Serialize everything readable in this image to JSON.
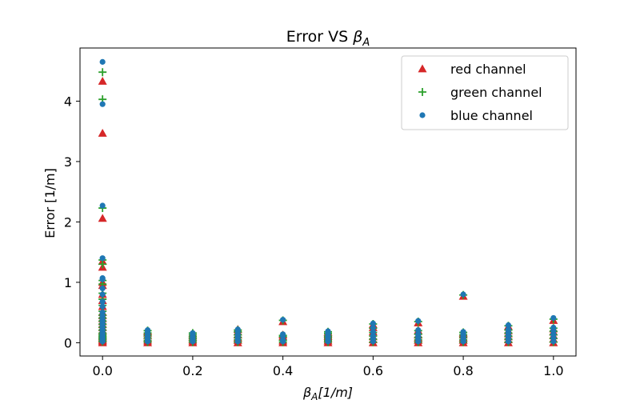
{
  "chart_data": {
    "type": "scatter",
    "title": "Error VS ",
    "title_symbol": "β",
    "title_symbol_sub": "A",
    "xlabel_symbol": "β",
    "xlabel_symbol_sub": "A",
    "xlabel_rest": "[1/m]",
    "ylabel": "Error [1/m]",
    "xlim": [
      -0.05,
      1.05
    ],
    "ylim": [
      -0.22,
      4.88
    ],
    "xticks": [
      0.0,
      0.2,
      0.4,
      0.6,
      0.8,
      1.0
    ],
    "xtick_labels": [
      "0.0",
      "0.2",
      "0.4",
      "0.6",
      "0.8",
      "1.0"
    ],
    "yticks": [
      0,
      1,
      2,
      3,
      4
    ],
    "ytick_labels": [
      "0",
      "1",
      "2",
      "3",
      "4"
    ],
    "grid": false,
    "legend_position": "top-right",
    "series": [
      {
        "name": "red channel",
        "marker": "triangle",
        "color": "#d62728",
        "x": [
          0.0,
          0.0,
          0.0,
          0.0,
          0.0,
          0.0,
          0.0,
          0.0,
          0.0,
          0.0,
          0.0,
          0.0,
          0.0,
          0.0,
          0.0,
          0.0,
          0.0,
          0.0,
          0.0,
          0.0,
          0.0,
          0.0,
          0.0,
          0.0,
          0.0,
          0.1,
          0.1,
          0.1,
          0.1,
          0.1,
          0.1,
          0.2,
          0.2,
          0.2,
          0.2,
          0.2,
          0.2,
          0.3,
          0.3,
          0.3,
          0.3,
          0.3,
          0.3,
          0.4,
          0.4,
          0.4,
          0.4,
          0.4,
          0.5,
          0.5,
          0.5,
          0.5,
          0.5,
          0.5,
          0.6,
          0.6,
          0.6,
          0.6,
          0.6,
          0.6,
          0.7,
          0.7,
          0.7,
          0.7,
          0.7,
          0.7,
          0.8,
          0.8,
          0.8,
          0.8,
          0.8,
          0.8,
          0.9,
          0.9,
          0.9,
          0.9,
          0.9,
          0.9,
          1.0,
          1.0,
          1.0,
          1.0,
          1.0,
          1.0
        ],
        "y": [
          4.33,
          3.47,
          2.06,
          1.35,
          1.25,
          1.0,
          0.95,
          0.8,
          0.7,
          0.6,
          0.5,
          0.45,
          0.4,
          0.35,
          0.3,
          0.25,
          0.2,
          0.15,
          0.12,
          0.1,
          0.08,
          0.06,
          0.04,
          0.02,
          0.0,
          0.0,
          0.03,
          0.07,
          0.12,
          0.16,
          0.19,
          0.0,
          0.03,
          0.06,
          0.09,
          0.12,
          0.15,
          0.0,
          0.04,
          0.08,
          0.13,
          0.18,
          0.22,
          0.0,
          0.03,
          0.1,
          0.13,
          0.35,
          0.0,
          0.03,
          0.07,
          0.11,
          0.15,
          0.17,
          0.0,
          0.05,
          0.1,
          0.18,
          0.25,
          0.3,
          0.0,
          0.04,
          0.08,
          0.13,
          0.2,
          0.33,
          0.0,
          0.04,
          0.08,
          0.13,
          0.16,
          0.77,
          0.0,
          0.05,
          0.1,
          0.15,
          0.2,
          0.27,
          0.0,
          0.06,
          0.12,
          0.18,
          0.23,
          0.37
        ]
      },
      {
        "name": "green channel",
        "marker": "plus",
        "color": "#2ca02c",
        "x": [
          0.0,
          0.0,
          0.0,
          0.0,
          0.0,
          0.0,
          0.0,
          0.0,
          0.0,
          0.0,
          0.0,
          0.0,
          0.0,
          0.0,
          0.0,
          0.0,
          0.0,
          0.0,
          0.0,
          0.0,
          0.0,
          0.0,
          0.0,
          0.0,
          0.1,
          0.1,
          0.1,
          0.1,
          0.1,
          0.1,
          0.2,
          0.2,
          0.2,
          0.2,
          0.2,
          0.2,
          0.3,
          0.3,
          0.3,
          0.3,
          0.3,
          0.3,
          0.4,
          0.4,
          0.4,
          0.4,
          0.4,
          0.5,
          0.5,
          0.5,
          0.5,
          0.5,
          0.5,
          0.6,
          0.6,
          0.6,
          0.6,
          0.6,
          0.6,
          0.7,
          0.7,
          0.7,
          0.7,
          0.7,
          0.7,
          0.8,
          0.8,
          0.8,
          0.8,
          0.8,
          0.8,
          0.9,
          0.9,
          0.9,
          0.9,
          0.9,
          0.9,
          1.0,
          1.0,
          1.0,
          1.0,
          1.0,
          1.0
        ],
        "y": [
          4.48,
          4.03,
          2.23,
          1.37,
          1.3,
          1.03,
          0.97,
          0.82,
          0.72,
          0.62,
          0.52,
          0.46,
          0.41,
          0.36,
          0.31,
          0.26,
          0.21,
          0.16,
          0.13,
          0.11,
          0.09,
          0.07,
          0.05,
          0.02,
          0.01,
          0.04,
          0.08,
          0.12,
          0.16,
          0.2,
          0.01,
          0.04,
          0.07,
          0.1,
          0.13,
          0.16,
          0.01,
          0.05,
          0.09,
          0.13,
          0.18,
          0.21,
          0.01,
          0.04,
          0.1,
          0.12,
          0.37,
          0.01,
          0.04,
          0.08,
          0.11,
          0.15,
          0.18,
          0.01,
          0.06,
          0.11,
          0.17,
          0.24,
          0.31,
          0.01,
          0.05,
          0.09,
          0.14,
          0.2,
          0.35,
          0.01,
          0.05,
          0.09,
          0.13,
          0.17,
          0.79,
          0.01,
          0.06,
          0.11,
          0.16,
          0.21,
          0.28,
          0.01,
          0.07,
          0.13,
          0.19,
          0.24,
          0.39
        ]
      },
      {
        "name": "blue channel",
        "marker": "circle",
        "color": "#1f77b4",
        "x": [
          0.0,
          0.0,
          0.0,
          0.0,
          0.0,
          0.0,
          0.0,
          0.0,
          0.0,
          0.0,
          0.0,
          0.0,
          0.0,
          0.0,
          0.0,
          0.0,
          0.0,
          0.0,
          0.0,
          0.0,
          0.0,
          0.0,
          0.0,
          0.0,
          0.1,
          0.1,
          0.1,
          0.1,
          0.1,
          0.1,
          0.2,
          0.2,
          0.2,
          0.2,
          0.2,
          0.2,
          0.3,
          0.3,
          0.3,
          0.3,
          0.3,
          0.3,
          0.4,
          0.4,
          0.4,
          0.4,
          0.4,
          0.5,
          0.5,
          0.5,
          0.5,
          0.5,
          0.5,
          0.6,
          0.6,
          0.6,
          0.6,
          0.6,
          0.6,
          0.7,
          0.7,
          0.7,
          0.7,
          0.7,
          0.7,
          0.8,
          0.8,
          0.8,
          0.8,
          0.8,
          0.8,
          0.9,
          0.9,
          0.9,
          0.9,
          0.9,
          0.9,
          1.0,
          1.0,
          1.0,
          1.0,
          1.0,
          1.0
        ],
        "y": [
          4.65,
          3.95,
          2.27,
          1.4,
          1.07,
          1.05,
          0.9,
          0.8,
          0.68,
          0.6,
          0.5,
          0.44,
          0.38,
          0.33,
          0.28,
          0.23,
          0.19,
          0.15,
          0.12,
          0.1,
          0.08,
          0.06,
          0.04,
          0.02,
          0.02,
          0.05,
          0.09,
          0.13,
          0.17,
          0.21,
          0.02,
          0.05,
          0.08,
          0.11,
          0.14,
          0.16,
          0.02,
          0.06,
          0.1,
          0.14,
          0.19,
          0.22,
          0.02,
          0.05,
          0.11,
          0.14,
          0.38,
          0.02,
          0.05,
          0.09,
          0.12,
          0.16,
          0.19,
          0.02,
          0.07,
          0.12,
          0.18,
          0.25,
          0.32,
          0.02,
          0.06,
          0.1,
          0.15,
          0.21,
          0.36,
          0.02,
          0.06,
          0.1,
          0.14,
          0.18,
          0.8,
          0.02,
          0.07,
          0.12,
          0.17,
          0.22,
          0.29,
          0.02,
          0.08,
          0.14,
          0.2,
          0.25,
          0.41
        ]
      }
    ]
  }
}
